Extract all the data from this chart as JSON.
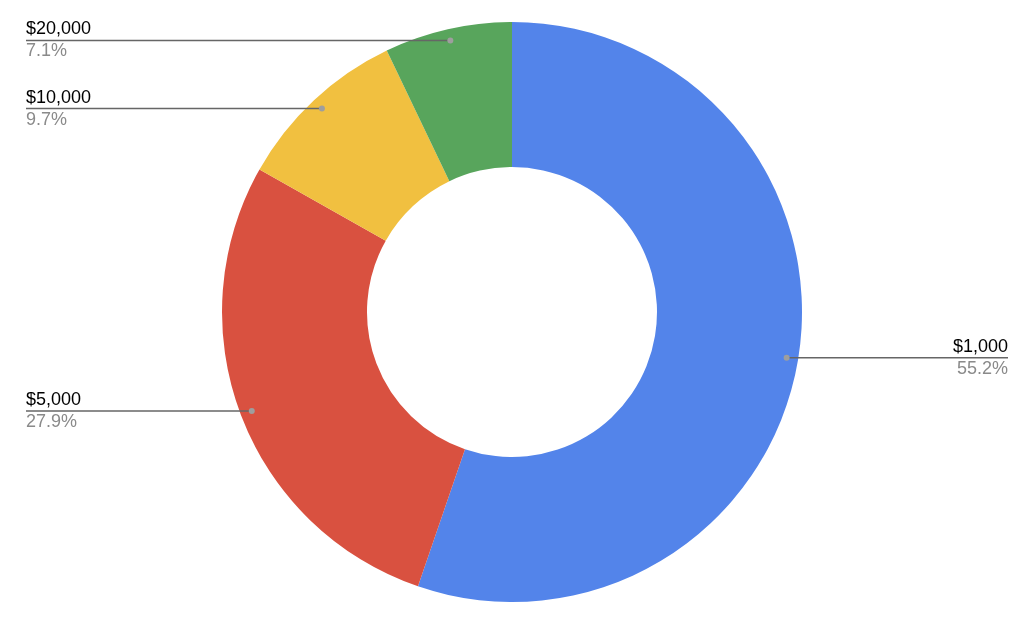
{
  "chart_data": {
    "type": "donut",
    "categories": [
      "$1,000",
      "$5,000",
      "$10,000",
      "$20,000"
    ],
    "values": [
      55.2,
      27.9,
      9.7,
      7.1
    ],
    "value_labels": [
      "55.2%",
      "27.9%",
      "9.7%",
      "7.1%"
    ],
    "colors": [
      "#5384ea",
      "#d95140",
      "#f1c040",
      "#58a55c"
    ],
    "legend": false
  }
}
